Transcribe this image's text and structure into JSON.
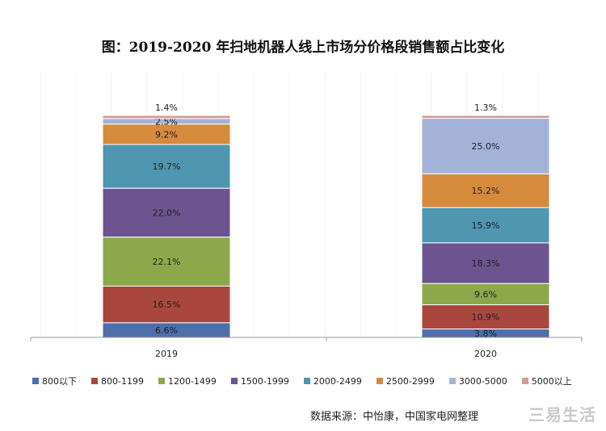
{
  "title": "图：2019-2020 年扫地机器人线上市场分价格段销售额占比变化",
  "source": "数据来源：中怡康，中国家电网整理",
  "watermark": "三易生活",
  "chart_data": {
    "type": "bar",
    "stacked": true,
    "percent": true,
    "categories": [
      "2019",
      "2020"
    ],
    "ylim": [
      0,
      100
    ],
    "legend_position": "bottom",
    "series": [
      {
        "name": "800以下",
        "color": "#4e6fab",
        "values": [
          6.6,
          3.8
        ],
        "labels": [
          "6.6%",
          "3.8%"
        ]
      },
      {
        "name": "800-1199",
        "color": "#a9473f",
        "values": [
          16.5,
          10.9
        ],
        "labels": [
          "16.5%",
          "10.9%"
        ]
      },
      {
        "name": "1200-1499",
        "color": "#8da84b",
        "values": [
          22.1,
          9.6
        ],
        "labels": [
          "22.1%",
          "9.6%"
        ]
      },
      {
        "name": "1500-1999",
        "color": "#6b548f",
        "values": [
          22.0,
          18.3
        ],
        "labels": [
          "22.0%",
          "18.3%"
        ]
      },
      {
        "name": "2000-2499",
        "color": "#4f96b0",
        "values": [
          19.7,
          15.9
        ],
        "labels": [
          "19.7%",
          "15.9%"
        ]
      },
      {
        "name": "2500-2999",
        "color": "#d68a3c",
        "values": [
          9.2,
          15.2
        ],
        "labels": [
          "9.2%",
          "15.2%"
        ]
      },
      {
        "name": "3000-5000",
        "color": "#a3b3d8",
        "values": [
          2.5,
          25.0
        ],
        "labels": [
          "2.5%",
          "25.0%"
        ]
      },
      {
        "name": "5000以上",
        "color": "#d59998",
        "values": [
          1.4,
          1.3
        ],
        "labels": [
          "1.4%",
          "1.3%"
        ]
      }
    ]
  }
}
